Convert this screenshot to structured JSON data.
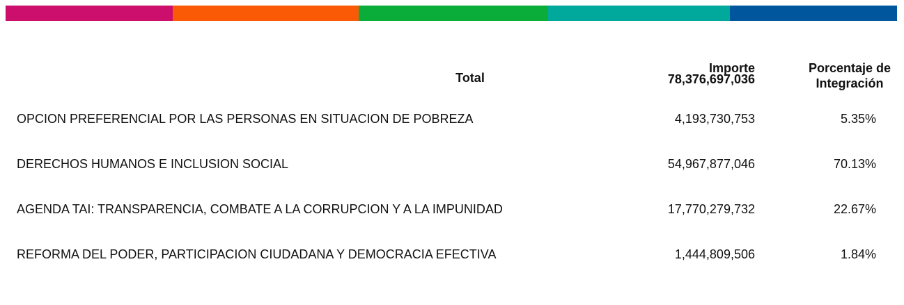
{
  "header": {
    "total_label": "Total",
    "importe_label": "Importe",
    "importe_total": "78,376,697,036",
    "porcentaje_label": "Porcentaje de Integración"
  },
  "table": {
    "rows": [
      [
        "OPCION PREFERENCIAL POR LAS PERSONAS EN SITUACION DE POBREZA",
        "4,193,730,753",
        "5.35%"
      ],
      [
        "DERECHOS HUMANOS E INCLUSION SOCIAL",
        "54,967,877,046",
        "70.13%"
      ],
      [
        "AGENDA TAI: TRANSPARENCIA, COMBATE A LA CORRUPCION Y A LA IMPUNIDAD",
        "17,770,279,732",
        "22.67%"
      ],
      [
        "REFORMA DEL PODER, PARTICIPACION CIUDADANA Y DEMOCRACIA EFECTIVA",
        "1,444,809,506",
        "1.84%"
      ]
    ]
  }
}
